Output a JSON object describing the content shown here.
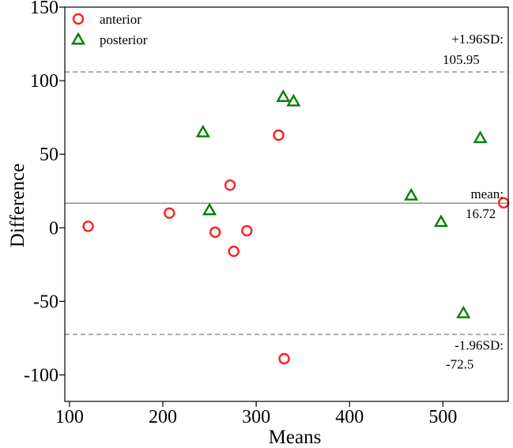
{
  "chart_data": {
    "type": "scatter",
    "xlabel": "Means",
    "ylabel": "Difference",
    "xlim": [
      95,
      570
    ],
    "ylim": [
      -118,
      150
    ],
    "x_ticks": [
      100,
      200,
      300,
      400,
      500
    ],
    "y_ticks": [
      -100,
      -50,
      0,
      50,
      100,
      150
    ],
    "x_tick_labels": [
      "100",
      "200",
      "300",
      "400",
      "500"
    ],
    "y_tick_labels": [
      "-100",
      "-50",
      "0",
      "50",
      "100",
      "150"
    ],
    "grid": false,
    "legend_position": "top-left",
    "series": [
      {
        "name": "anterior",
        "marker": "circle",
        "color": "#ff2020",
        "points": [
          {
            "x": 120,
            "y": 1
          },
          {
            "x": 207,
            "y": 10
          },
          {
            "x": 256,
            "y": -3
          },
          {
            "x": 272,
            "y": 29
          },
          {
            "x": 276,
            "y": -16
          },
          {
            "x": 290,
            "y": -2
          },
          {
            "x": 324,
            "y": 63
          },
          {
            "x": 330,
            "y": -89
          },
          {
            "x": 565,
            "y": 17
          }
        ]
      },
      {
        "name": "posterior",
        "marker": "triangle",
        "color": "#008000",
        "points": [
          {
            "x": 243,
            "y": 65
          },
          {
            "x": 250,
            "y": 12
          },
          {
            "x": 329,
            "y": 89
          },
          {
            "x": 340,
            "y": 86
          },
          {
            "x": 466,
            "y": 22
          },
          {
            "x": 498,
            "y": 4
          },
          {
            "x": 522,
            "y": -58
          },
          {
            "x": 540,
            "y": 61
          }
        ]
      }
    ],
    "reference_lines": [
      {
        "id": "upper",
        "y": 105.95,
        "style": "dashed",
        "color": "#999999",
        "label_line1": "+1.96SD:",
        "label_line2": "105.95"
      },
      {
        "id": "mean",
        "y": 16.72,
        "style": "solid",
        "color": "#999999",
        "label_line1": "mean:",
        "label_line2": "16.72"
      },
      {
        "id": "lower",
        "y": -72.5,
        "style": "dashed",
        "color": "#999999",
        "label_line1": "-1.96SD:",
        "label_line2": "-72.5"
      }
    ]
  }
}
